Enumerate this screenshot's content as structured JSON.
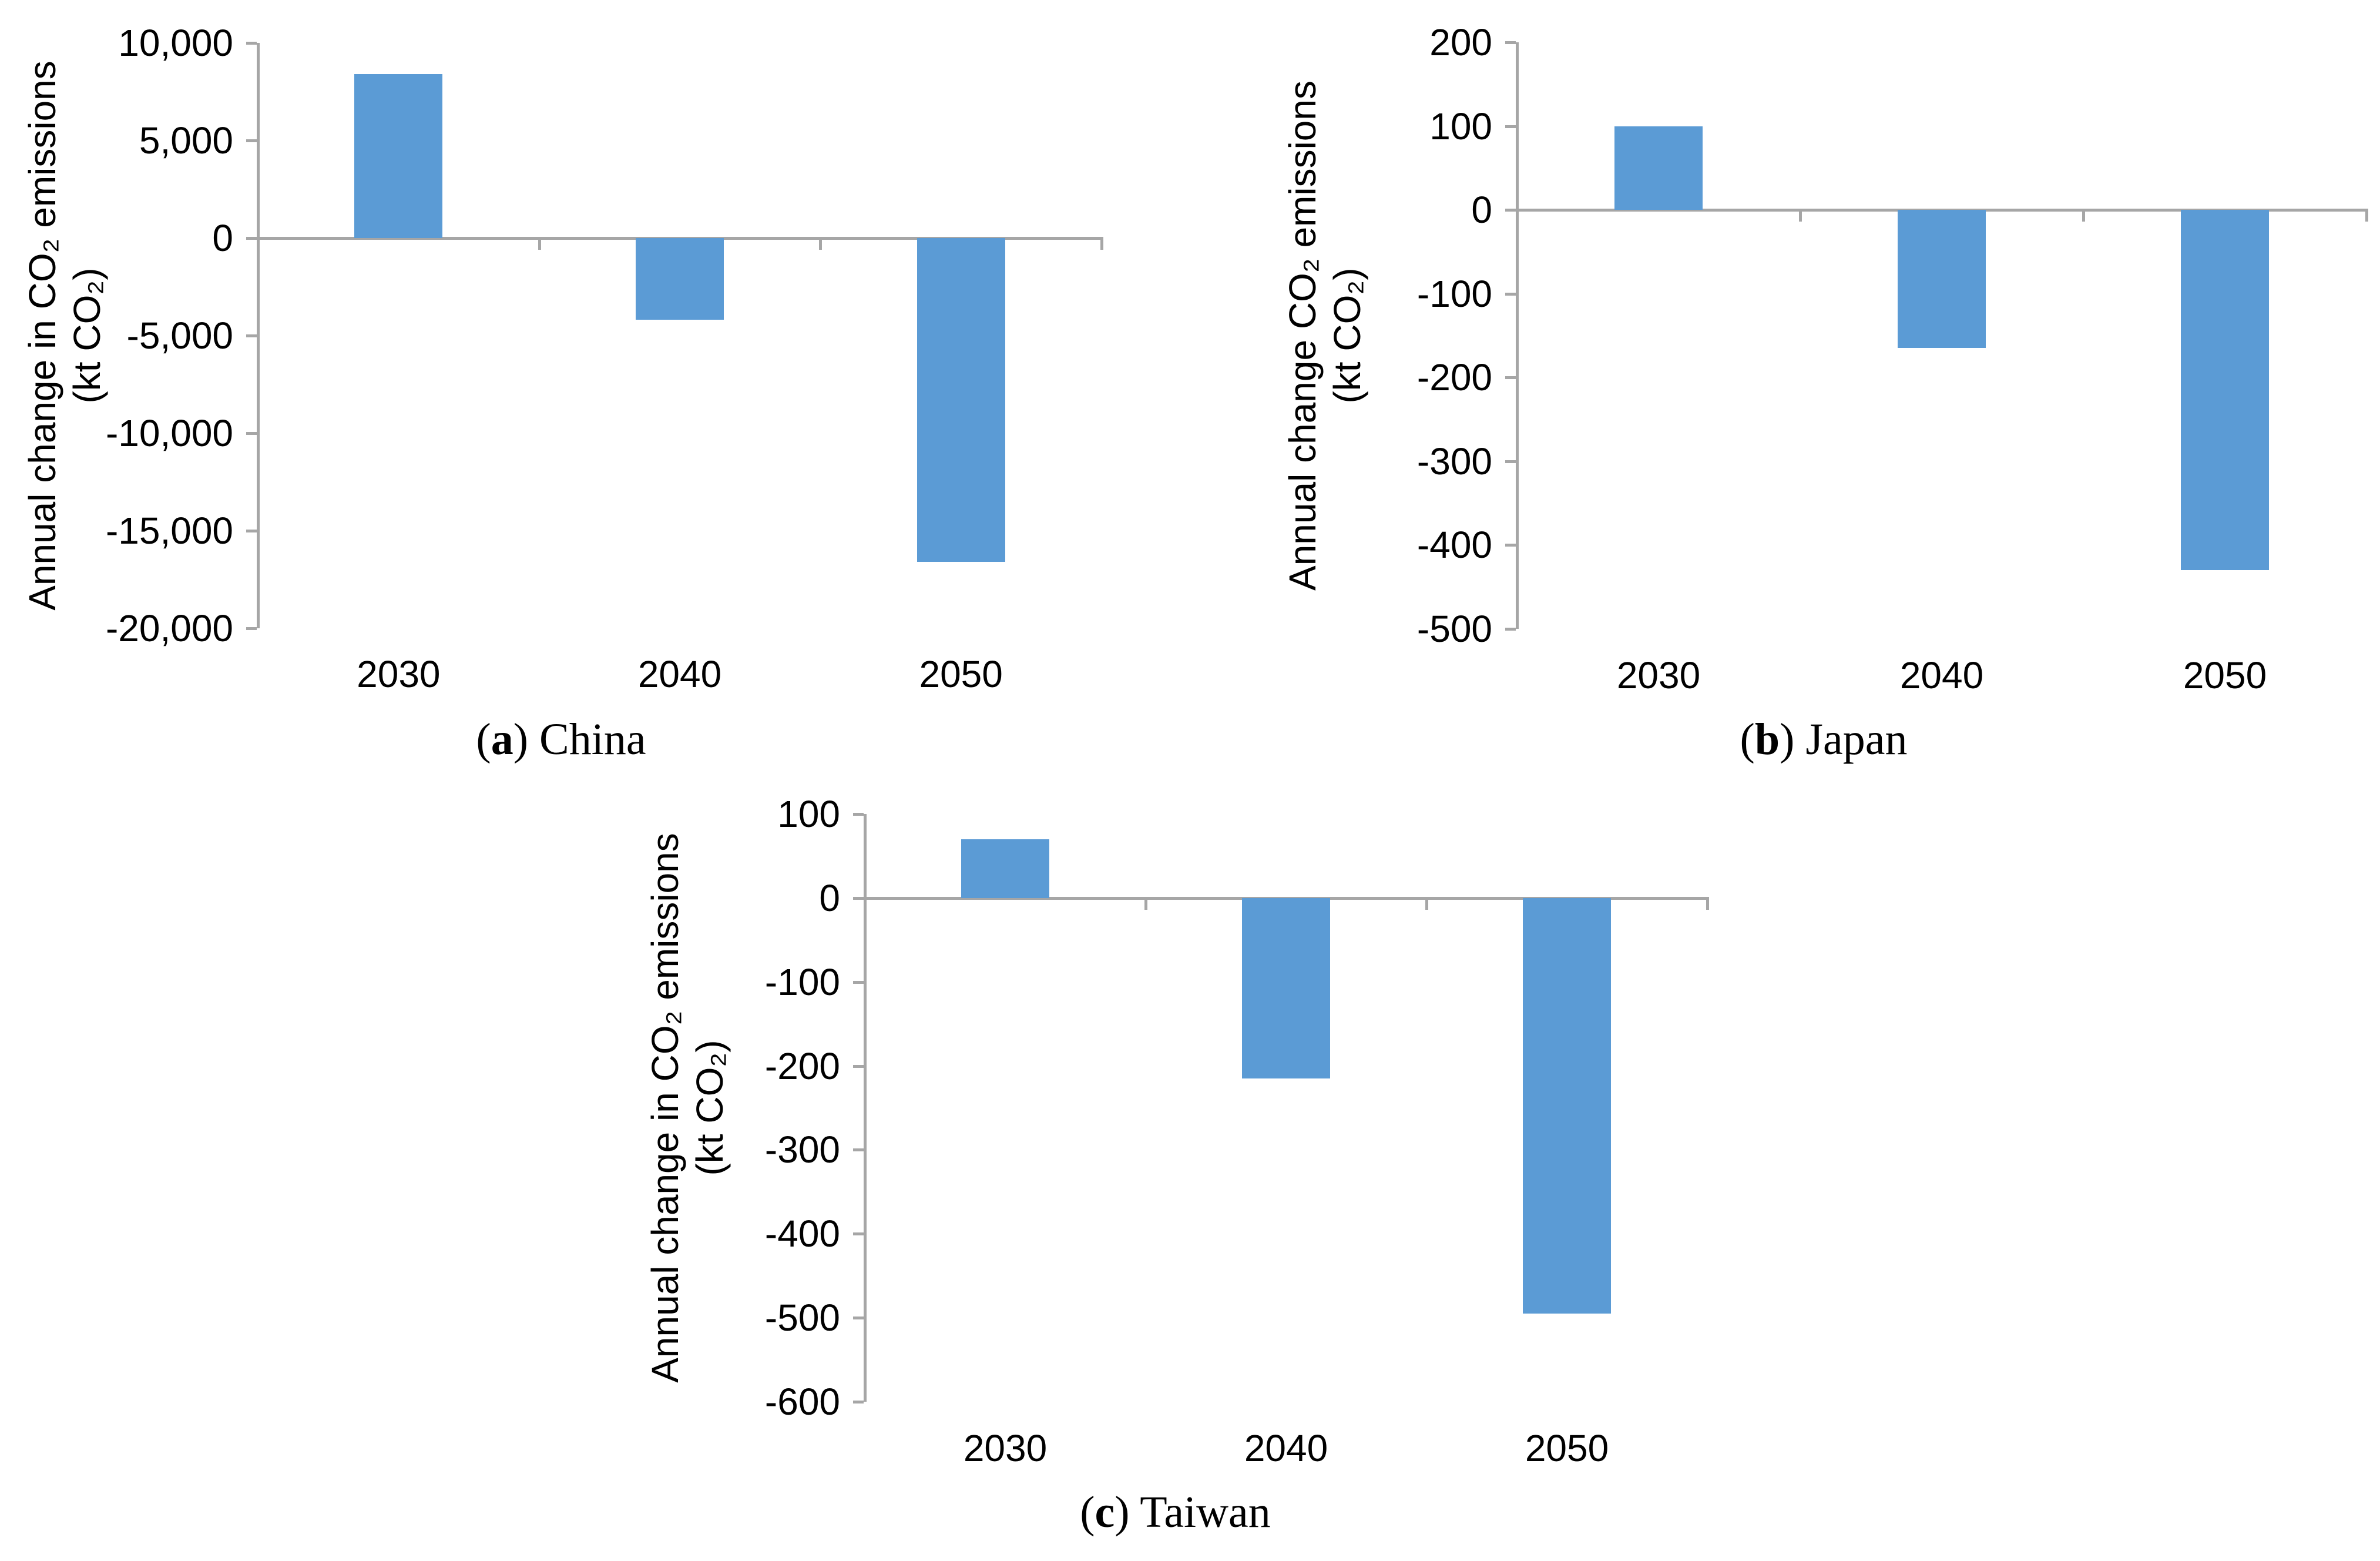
{
  "accent_color": "#5B9BD5",
  "axis_color": "#A6A6A6",
  "chart_data": [
    {
      "id": "a",
      "type": "bar",
      "caption": {
        "prefix": "(",
        "letter": "a",
        "suffix": ")",
        "title": "China"
      },
      "ylabel_lines": [
        "Annual change in CO₂ emissions",
        "(kt CO₂)"
      ],
      "xlabel": "",
      "categories": [
        "2030",
        "2040",
        "2050"
      ],
      "values": [
        8400,
        -4200,
        -16600
      ],
      "ylim": [
        -20000,
        10000
      ],
      "yticks": [
        {
          "label": "10,000",
          "value": 10000
        },
        {
          "label": "5,000",
          "value": 5000
        },
        {
          "label": "0",
          "value": 0
        },
        {
          "label": "-5,000",
          "value": -5000
        },
        {
          "label": "-10,000",
          "value": -10000
        },
        {
          "label": "-15,000",
          "value": -15000
        },
        {
          "label": "-20,000",
          "value": -20000
        }
      ],
      "bar_color": "#5B9BD5",
      "grid": false,
      "legend": null,
      "unit": "kt CO₂"
    },
    {
      "id": "b",
      "type": "bar",
      "caption": {
        "prefix": "(",
        "letter": "b",
        "suffix": ")",
        "title": "Japan"
      },
      "ylabel_lines": [
        "Annual change CO₂ emissions",
        "(kt CO₂)"
      ],
      "xlabel": "",
      "categories": [
        "2030",
        "2040",
        "2050"
      ],
      "values": [
        100,
        -165,
        -430
      ],
      "ylim": [
        -500,
        200
      ],
      "yticks": [
        {
          "label": "200",
          "value": 200
        },
        {
          "label": "100",
          "value": 100
        },
        {
          "label": "0",
          "value": 0
        },
        {
          "label": "-100",
          "value": -100
        },
        {
          "label": "-200",
          "value": -200
        },
        {
          "label": "-300",
          "value": -300
        },
        {
          "label": "-400",
          "value": -400
        },
        {
          "label": "-500",
          "value": -500
        }
      ],
      "bar_color": "#5B9BD5",
      "grid": false,
      "legend": null,
      "unit": "kt CO₂"
    },
    {
      "id": "c",
      "type": "bar",
      "caption": {
        "prefix": "(",
        "letter": "c",
        "suffix": ")",
        "title": "Taiwan"
      },
      "ylabel_lines": [
        "Annual change in CO₂ emissions",
        "(kt CO₂)"
      ],
      "xlabel": "",
      "categories": [
        "2030",
        "2040",
        "2050"
      ],
      "values": [
        70,
        -215,
        -495
      ],
      "ylim": [
        -600,
        100
      ],
      "yticks": [
        {
          "label": "100",
          "value": 100
        },
        {
          "label": "0",
          "value": 0
        },
        {
          "label": "-100",
          "value": -100
        },
        {
          "label": "-200",
          "value": -200
        },
        {
          "label": "-300",
          "value": -300
        },
        {
          "label": "-400",
          "value": -400
        },
        {
          "label": "-500",
          "value": -500
        },
        {
          "label": "-600",
          "value": -600
        }
      ],
      "bar_color": "#5B9BD5",
      "grid": false,
      "legend": null,
      "unit": "kt CO₂"
    }
  ]
}
